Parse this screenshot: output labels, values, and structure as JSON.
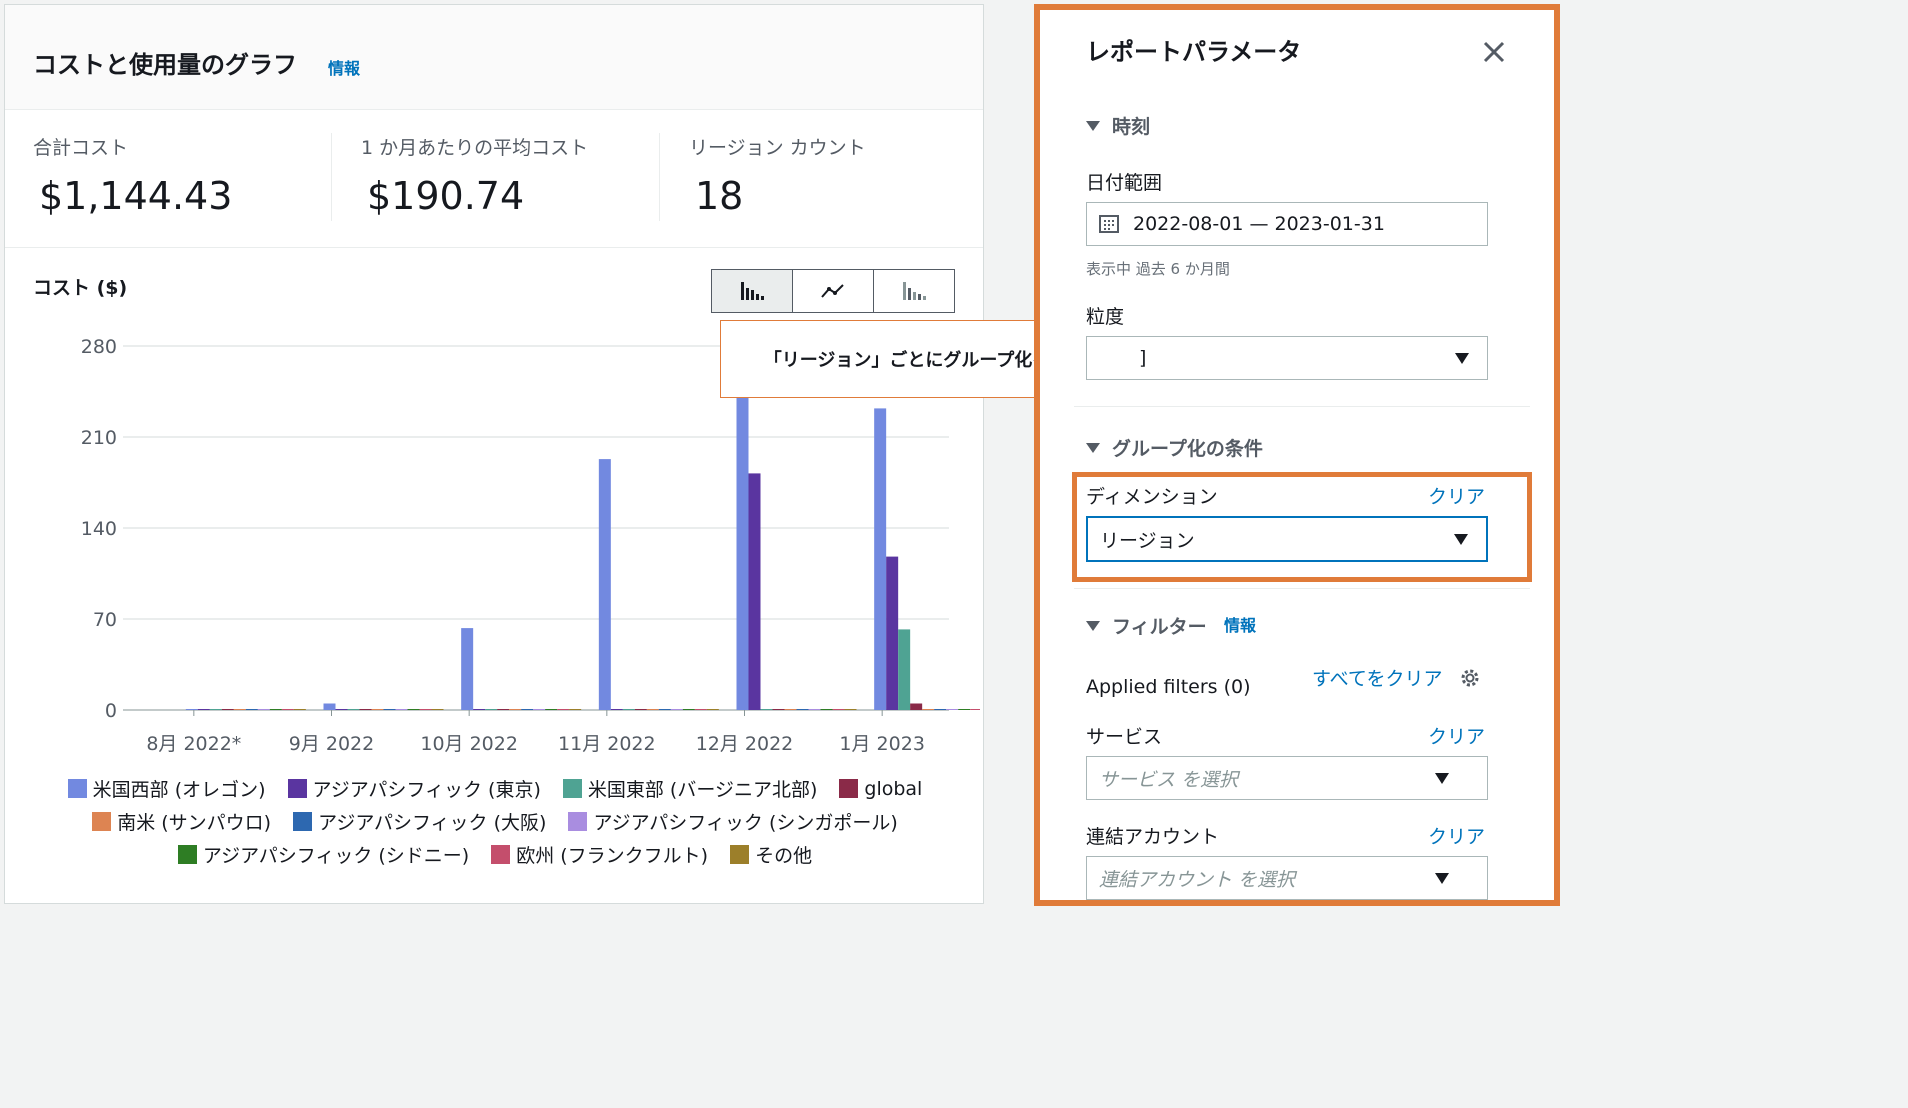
{
  "graph": {
    "title": "コストと使用量のグラフ",
    "info_link": "情報",
    "metrics": [
      {
        "label": "合計コスト",
        "value": "$1,144.43"
      },
      {
        "label": "1 か月あたりの平均コスト",
        "value": "$190.74"
      },
      {
        "label": "リージョン カウント",
        "value": "18"
      }
    ],
    "chart_label": "コスト ($)",
    "chart_type_buttons": [
      {
        "icon": "bar-chart-icon",
        "active": true
      },
      {
        "icon": "line-chart-icon",
        "active": false
      },
      {
        "icon": "stacked-bar-chart-icon",
        "active": false
      }
    ]
  },
  "chart_data": {
    "type": "bar",
    "ylabel": "コスト ($)",
    "ylim": [
      0,
      280
    ],
    "yticks": [
      "280",
      "210",
      "140",
      "70",
      "0"
    ],
    "categories": [
      "8月 2022*",
      "9月 2022",
      "10月 2022",
      "11月 2022",
      "12月 2022",
      "1月 2023"
    ],
    "series": [
      {
        "name": "米国西部 (オレゴン)",
        "color": "#7289e0",
        "values": [
          0,
          5,
          63,
          193,
          251,
          232
        ]
      },
      {
        "name": "アジアパシフィック (東京)",
        "color": "#5a35a0",
        "values": [
          0,
          0,
          0,
          0,
          182,
          118
        ]
      },
      {
        "name": "米国東部 (バージニア北部)",
        "color": "#4fa393",
        "values": [
          0,
          0,
          0,
          0,
          0,
          62
        ]
      },
      {
        "name": "global",
        "color": "#8a2a48",
        "values": [
          0,
          0,
          0,
          0,
          0,
          5
        ]
      },
      {
        "name": "南米 (サンパウロ)",
        "color": "#dd8452",
        "values": [
          0,
          0,
          0,
          0,
          0,
          0
        ]
      },
      {
        "name": "アジアパシフィック (大阪)",
        "color": "#2d68b0",
        "values": [
          0,
          0,
          0,
          0,
          0,
          0
        ]
      },
      {
        "name": "アジアパシフィック (シンガポール)",
        "color": "#a98de0",
        "values": [
          0,
          0,
          0,
          0,
          0,
          0
        ]
      },
      {
        "name": "アジアパシフィック (シドニー)",
        "color": "#2e7d24",
        "values": [
          0,
          0,
          0,
          0,
          0,
          0
        ]
      },
      {
        "name": "欧州 (フランクフルト)",
        "color": "#c44e6c",
        "values": [
          0,
          0,
          0,
          0,
          0,
          0
        ]
      },
      {
        "name": "その他",
        "color": "#9c7f2a",
        "values": [
          0,
          0,
          0,
          0,
          0,
          0
        ]
      }
    ],
    "legend_position": "bottom",
    "grid": true
  },
  "callout": {
    "text": "「リージョン」ごとにグループ化を設定"
  },
  "panel": {
    "title": "レポートパラメータ",
    "time_section": "時刻",
    "date_range_label": "日付範囲",
    "date_range_value": "2022-08-01 — 2023-01-31",
    "date_range_hint": "表示中 過去 6 か月間",
    "granularity_label": "粒度",
    "granularity_value_visible": "]",
    "group_section": "グループ化の条件",
    "dimension_label": "ディメンション",
    "dimension_clear": "クリア",
    "dimension_value": "リージョン",
    "filter_section": "フィルター",
    "filter_info": "情報",
    "applied_filters": "Applied filters (0)",
    "clear_all": "すべてをクリア",
    "service_label": "サービス",
    "service_clear": "クリア",
    "service_placeholder": "サービス を選択",
    "account_label": "連結アカウント",
    "account_clear": "クリア",
    "account_placeholder": "連結アカウント を選択"
  }
}
